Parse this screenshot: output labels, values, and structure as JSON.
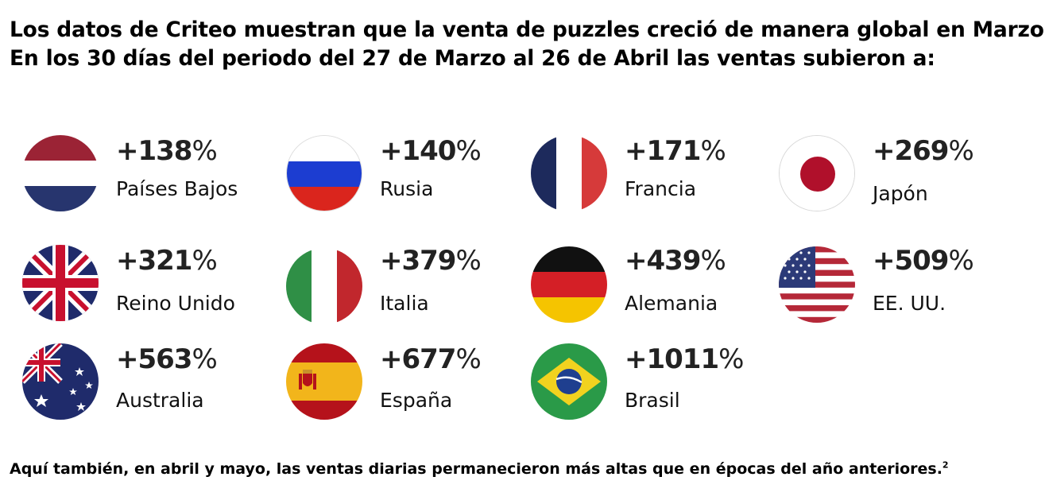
{
  "headline": {
    "line1": "Los datos de Criteo muestran que la venta de puzzles creció de manera global en Marzo.",
    "line2": "En los 30 días del periodo del 27 de Marzo al 26 de Abril las ventas subieron a:"
  },
  "countries": [
    {
      "value": "+138",
      "unit": "%",
      "name": "Países Bajos",
      "flag": "netherlands-flag-icon"
    },
    {
      "value": "+140",
      "unit": "%",
      "name": "Rusia",
      "flag": "russia-flag-icon"
    },
    {
      "value": "+171",
      "unit": "%",
      "name": "Francia",
      "flag": "france-flag-icon"
    },
    {
      "value": "+269",
      "unit": "%",
      "name": "Japón",
      "flag": "japan-flag-icon"
    },
    {
      "value": "+321",
      "unit": "%",
      "name": "Reino Unido",
      "flag": "uk-flag-icon"
    },
    {
      "value": "+379",
      "unit": "%",
      "name": "Italia",
      "flag": "italy-flag-icon"
    },
    {
      "value": "+439",
      "unit": "%",
      "name": "Alemania",
      "flag": "germany-flag-icon"
    },
    {
      "value": "+509",
      "unit": "%",
      "name": "EE. UU.",
      "flag": "usa-flag-icon"
    },
    {
      "value": "+563",
      "unit": "%",
      "name": "Australia",
      "flag": "australia-flag-icon"
    },
    {
      "value": "+677",
      "unit": "%",
      "name": "España",
      "flag": "spain-flag-icon"
    },
    {
      "value": "+1011",
      "unit": "%",
      "name": "Brasil",
      "flag": "brazil-flag-icon"
    }
  ],
  "footer": {
    "text": "Aquí también, en abril y mayo, las ventas diarias permanecieron más altas que en épocas del año anteriores.",
    "superscript": "2"
  },
  "colors": {
    "text": "#000000",
    "netherlands_red": "#9b2335",
    "netherlands_blue": "#27356e",
    "russia_blue": "#1c3dd1",
    "russia_red": "#da251d",
    "france_blue": "#1d2a5c",
    "france_red": "#d63a3a",
    "japan_red": "#b0102b",
    "uk_blue": "#1f2b6b",
    "uk_red": "#c8102e",
    "italy_green": "#2f8f46",
    "italy_red": "#c1272d",
    "germany_black": "#111111",
    "germany_red": "#d41f26",
    "germany_gold": "#f5c400",
    "usa_red": "#b52838",
    "usa_blue": "#2c3a78",
    "australia_blue": "#1f2b6b",
    "spain_red": "#b5121b",
    "spain_yellow": "#f2b51b",
    "brazil_green": "#2a9a48",
    "brazil_yellow": "#f2d21f",
    "brazil_blue": "#1f3f8f"
  }
}
